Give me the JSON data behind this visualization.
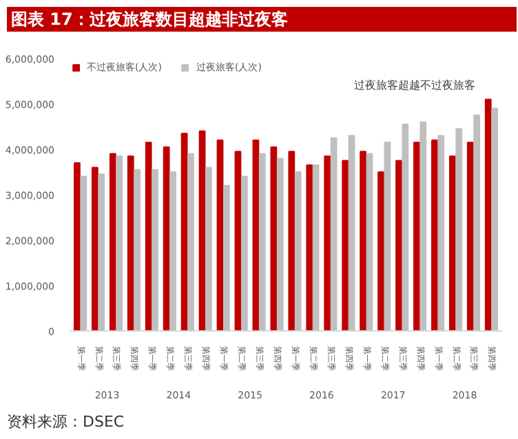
{
  "chart_data": {
    "type": "bar",
    "title": "图表 17：过夜旅客数目超越非过夜客",
    "categories": [
      "第一季",
      "第二季",
      "第三季",
      "第四季",
      "第一季",
      "第二季",
      "第三季",
      "第四季",
      "第一季",
      "第二季",
      "第三季",
      "第四季",
      "第一季",
      "第二季",
      "第三季",
      "第四季",
      "第一季",
      "第二季",
      "第三季",
      "第四季",
      "第一季",
      "第二季",
      "第三季",
      "第四季"
    ],
    "series": [
      {
        "name": "不过夜旅客(人次)",
        "color": "#c00000",
        "values": [
          3700000,
          3600000,
          3900000,
          3850000,
          4150000,
          4050000,
          4350000,
          4400000,
          4200000,
          3950000,
          4200000,
          4050000,
          3950000,
          3650000,
          3850000,
          3750000,
          3950000,
          3500000,
          3750000,
          4150000,
          4200000,
          3850000,
          4150000,
          5100000
        ]
      },
      {
        "name": "过夜旅客(人次)",
        "color": "#bfbfbf",
        "values": [
          3400000,
          3450000,
          3850000,
          3550000,
          3550000,
          3500000,
          3900000,
          3600000,
          3200000,
          3400000,
          3900000,
          3800000,
          3500000,
          3650000,
          4250000,
          4300000,
          3900000,
          4150000,
          4550000,
          4600000,
          4300000,
          4450000,
          4750000,
          4900000
        ]
      }
    ],
    "ylim": [
      0,
      6000000
    ],
    "yticks": [
      {
        "value": 0,
        "label": "0"
      },
      {
        "value": 1000000,
        "label": "1,000,000"
      },
      {
        "value": 2000000,
        "label": "2,000,000"
      },
      {
        "value": 3000000,
        "label": "3,000,000"
      },
      {
        "value": 4000000,
        "label": "4,000,000"
      },
      {
        "value": 5000000,
        "label": "5,000,000"
      },
      {
        "value": 6000000,
        "label": "6,000,000"
      }
    ],
    "annotations": [
      "资料来源：DSEC",
      "过夜旅客超越不过夜旅客",
      "2013",
      "2014",
      "2015",
      "2016",
      "2017",
      "2018"
    ],
    "grid": false,
    "legend": "top left"
  }
}
